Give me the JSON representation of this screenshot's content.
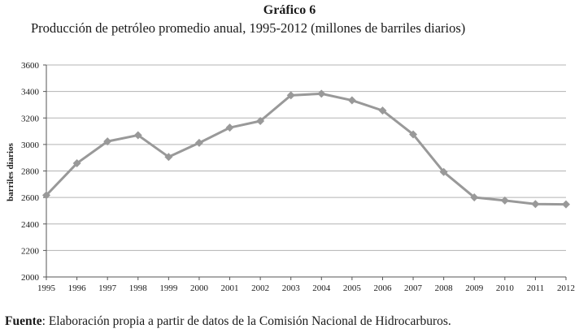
{
  "figure": {
    "number": "Gráfico 6",
    "title": "Producción de petróleo promedio anual, 1995-2012 (millones de barriles diarios)"
  },
  "source": {
    "label": "Fuente",
    "text": ": Elaboración propia a partir de datos de la Comisión Nacional de Hidrocarburos."
  },
  "chart_data": {
    "type": "line",
    "title": "Gráfico 6",
    "subtitle": "Producción de petróleo promedio anual, 1995-2012 (millones de barriles diarios)",
    "xlabel": "",
    "ylabel": "barriles diarios",
    "categories": [
      "1995",
      "1996",
      "1997",
      "1998",
      "1999",
      "2000",
      "2001",
      "2002",
      "2003",
      "2004",
      "2005",
      "2006",
      "2007",
      "2008",
      "2009",
      "2010",
      "2011",
      "2012"
    ],
    "series": [
      {
        "values": [
          2617,
          2858,
          3023,
          3070,
          2906,
          3012,
          3127,
          3177,
          3371,
          3383,
          3333,
          3256,
          3076,
          2792,
          2601,
          2577,
          2550,
          2548
        ]
      }
    ],
    "ylim": [
      2000,
      3600
    ],
    "yticks": [
      2000,
      2200,
      2400,
      2600,
      2800,
      3000,
      3200,
      3400,
      3600
    ],
    "grid": true,
    "legend": "none",
    "line_color": "#999999",
    "grid_color": "#b3b3b3"
  }
}
